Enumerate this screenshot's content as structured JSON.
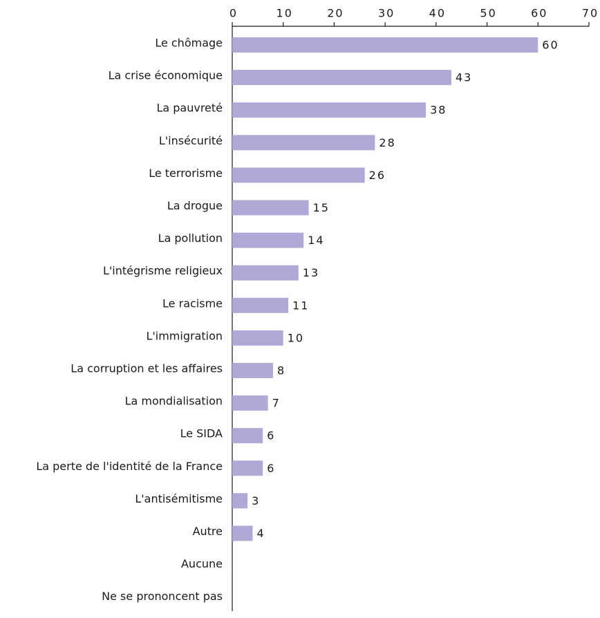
{
  "chart_data": {
    "type": "bar",
    "orientation": "horizontal",
    "categories": [
      "Le chômage",
      "La crise économique",
      "La pauvreté",
      "L'insécurité",
      "Le terrorisme",
      "La drogue",
      "La pollution",
      "L'intégrisme religieux",
      "Le racisme",
      "L'immigration",
      "La corruption et les affaires",
      "La mondialisation",
      "Le SIDA",
      "La perte de l'identité de la France",
      "L'antisémitisme",
      "Autre",
      "Aucune",
      "Ne se prononcent pas"
    ],
    "values": [
      60,
      43,
      38,
      28,
      26,
      15,
      14,
      13,
      11,
      10,
      8,
      7,
      6,
      6,
      3,
      4,
      null,
      null
    ],
    "color": "#b0a8d6",
    "xlim": [
      0,
      70
    ],
    "xticks": [
      0,
      10,
      20,
      30,
      40,
      50,
      60,
      70
    ],
    "grid": false
  }
}
